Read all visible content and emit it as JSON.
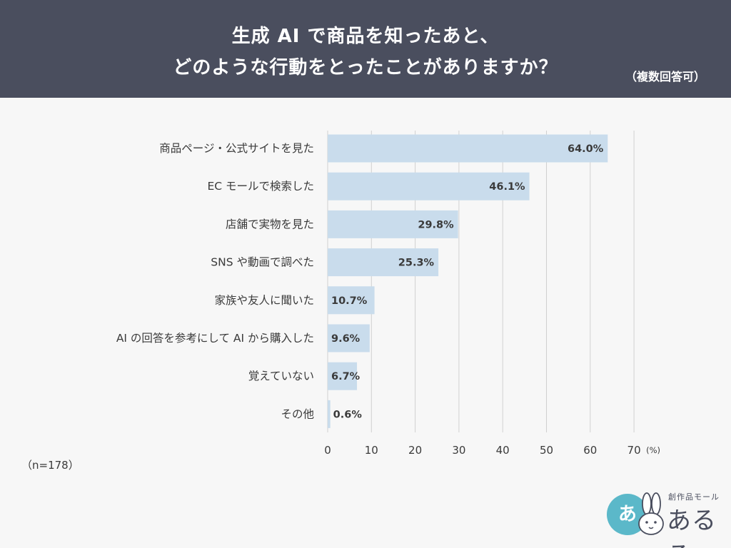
{
  "header": {
    "title_line1": "生成 AI で商品を知ったあと、",
    "title_line2": "どのような行動をとったことがありますか？",
    "note": "（複数回答可）"
  },
  "footer": {
    "sample_size": "（n=178）"
  },
  "logo": {
    "circle_text": "あ",
    "subtitle": "創作品モール",
    "name": "あるる"
  },
  "colors": {
    "header_bg": "#4a4e5e",
    "bar": "#c9dcec",
    "grid": "#d0d0d0",
    "logo_accent": "#5bb8c9"
  },
  "chart_data": {
    "type": "bar",
    "orientation": "horizontal",
    "categories": [
      "商品ページ・公式サイトを見た",
      "EC モールで検索した",
      "店舗で実物を見た",
      "SNS や動画で調べた",
      "家族や友人に聞いた",
      "AI の回答を参考にして AI から購入した",
      "覚えていない",
      "その他"
    ],
    "values": [
      64.0,
      46.1,
      29.8,
      25.3,
      10.7,
      9.6,
      6.7,
      0.6
    ],
    "value_labels": [
      "64.0%",
      "46.1%",
      "29.8%",
      "25.3%",
      "10.7%",
      "9.6%",
      "6.7%",
      "0.6%"
    ],
    "x_ticks": [
      0,
      10,
      20,
      30,
      40,
      50,
      60,
      70
    ],
    "x_unit": "(%)",
    "xlim": [
      0,
      70
    ],
    "grid": true
  }
}
